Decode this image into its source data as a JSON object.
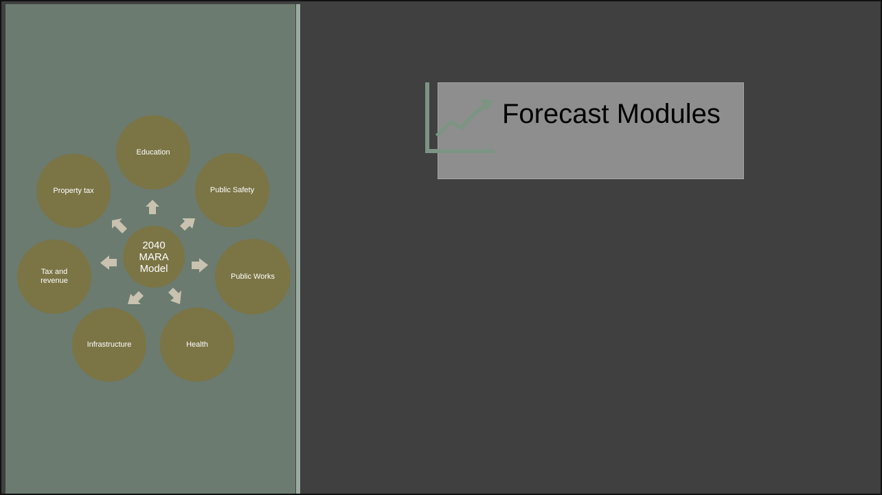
{
  "title": "Forecast Modules",
  "diagram": {
    "hub": "2040 MARA Model",
    "nodes": {
      "education": "Education",
      "public_safety": "Public Safety",
      "public_works": "Public Works",
      "health": "Health",
      "infrastructure": "Infrastructure",
      "tax_and_revenue": "Tax and revenue",
      "property_tax": "Property tax"
    }
  },
  "colors": {
    "slide_background": "#404040",
    "left_panel": "#6b7b70",
    "node_fill": "#7b7445",
    "arrow_fill": "#c9c2b0",
    "title_box": "#8e8e8e",
    "icon_stroke": "#7d9484"
  },
  "icons": [
    "trend-chart-icon"
  ]
}
